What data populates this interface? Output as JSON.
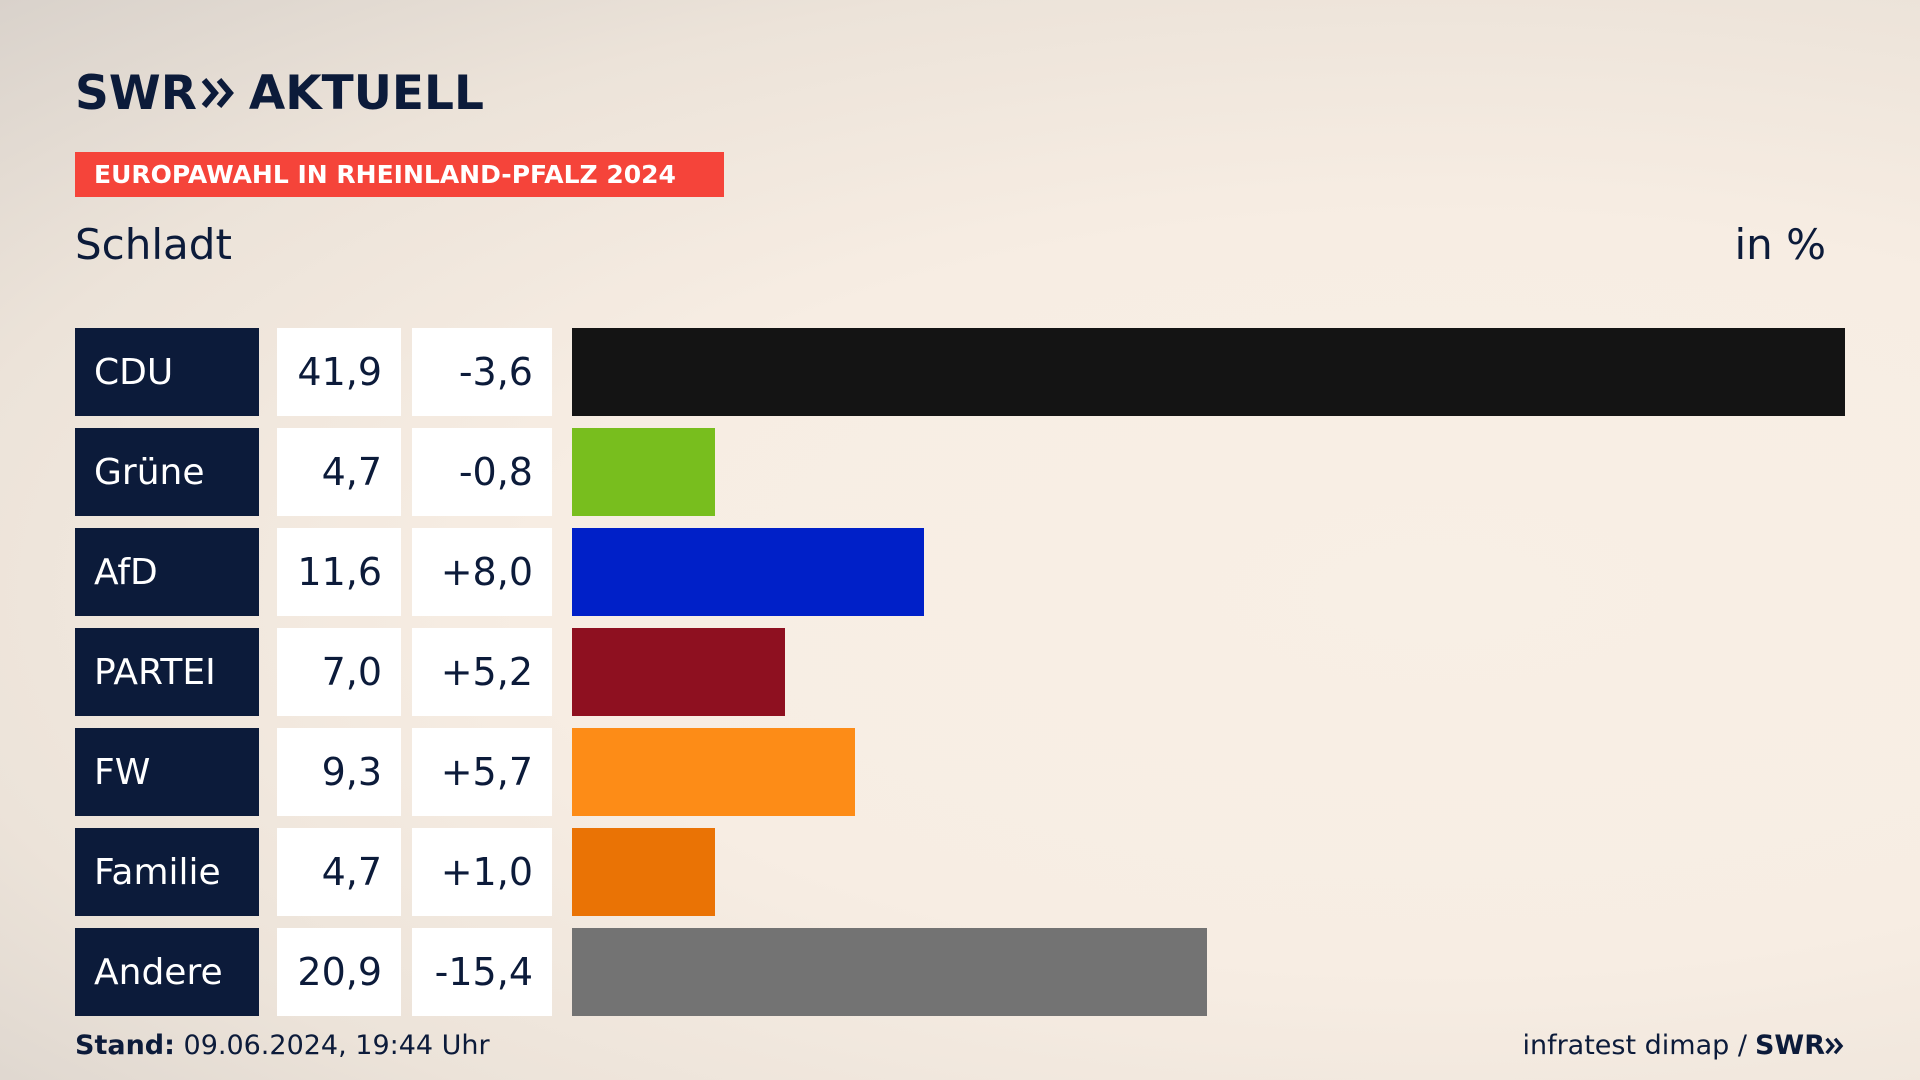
{
  "header": {
    "logo_left": "SWR",
    "logo_right": "AKTUELL",
    "banner": "EUROPAWAHL IN RHEINLAND-PFALZ 2024",
    "place": "Schladt",
    "unit": "in %"
  },
  "colors": {
    "navy": "#0c1b3a",
    "banner_red": "#f5443a"
  },
  "chart_data": {
    "type": "bar",
    "orientation": "horizontal",
    "unit": "in %",
    "xlim": [
      0,
      41.9
    ],
    "rows": [
      {
        "party": "CDU",
        "value": 41.9,
        "value_label": "41,9",
        "diff_label": "-3,6",
        "color": "#141414"
      },
      {
        "party": "Grüne",
        "value": 4.7,
        "value_label": "4,7",
        "diff_label": "-0,8",
        "color": "#78be1e"
      },
      {
        "party": "AfD",
        "value": 11.6,
        "value_label": "11,6",
        "diff_label": "+8,0",
        "color": "#0020c8"
      },
      {
        "party": "PARTEI",
        "value": 7.0,
        "value_label": "7,0",
        "diff_label": "+5,2",
        "color": "#8e1020"
      },
      {
        "party": "FW",
        "value": 9.3,
        "value_label": "9,3",
        "diff_label": "+5,7",
        "color": "#fd8c17"
      },
      {
        "party": "Familie",
        "value": 4.7,
        "value_label": "4,7",
        "diff_label": "+1,0",
        "color": "#ea7305"
      },
      {
        "party": "Andere",
        "value": 20.9,
        "value_label": "20,9",
        "diff_label": "-15,4",
        "color": "#737373"
      }
    ]
  },
  "footer": {
    "stand_label": "Stand:",
    "stand_value": "09.06.2024, 19:44 Uhr",
    "source": "infratest dimap /",
    "source_logo": "SWR"
  }
}
